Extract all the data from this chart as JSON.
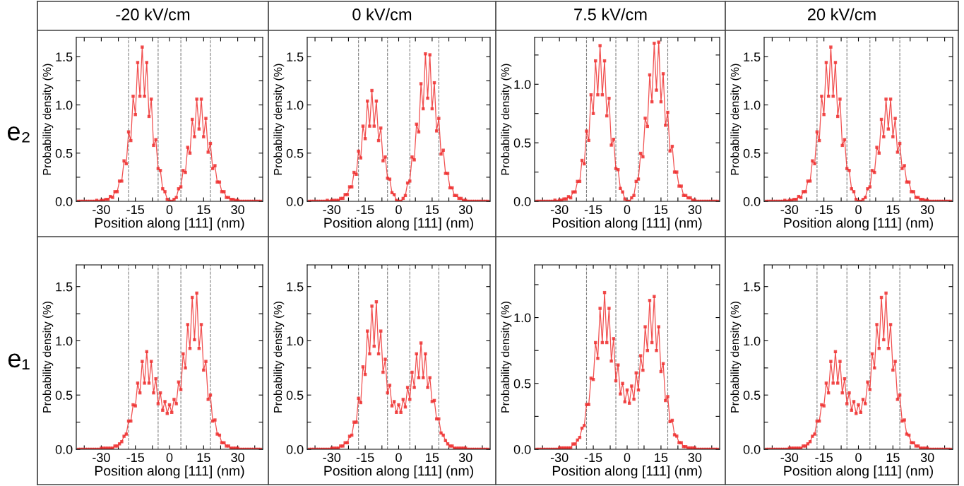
{
  "chart_data": [
    {
      "type": "line",
      "title": "-20 kV/cm",
      "annotations": [
        "e₂"
      ],
      "xlabel": "Position along [111] (nm)",
      "ylabel": "Probability density (%)",
      "marker": "square",
      "line_style": "solid",
      "xlim": [
        -41,
        41
      ],
      "ylim": [
        0,
        1.7
      ],
      "xticks": [
        {
          "value": -37.5,
          "label": null
        },
        -30,
        {
          "value": -22.5,
          "label": null
        },
        -15,
        {
          "value": -7.5,
          "label": null
        },
        0,
        {
          "value": 7.5,
          "label": null
        },
        15,
        {
          "value": 22.5,
          "label": null
        },
        30,
        {
          "value": 37.5,
          "label": null
        }
      ],
      "yticks": [
        {
          "value": 0,
          "label": "0.0"
        },
        {
          "value": 0.25,
          "label": null
        },
        {
          "value": 0.5,
          "label": "0.5"
        },
        {
          "value": 0.75,
          "label": null
        },
        {
          "value": 1,
          "label": "1.0"
        },
        {
          "value": 1.25,
          "label": null
        },
        {
          "value": 1.5,
          "label": "1.5"
        }
      ],
      "ref_lines": [
        {
          "axis": "x",
          "value": -18,
          "color": "#808080",
          "line_style": "dashed"
        },
        {
          "axis": "x",
          "value": -5,
          "color": "#808080",
          "line_style": "dashed"
        },
        {
          "axis": "x",
          "value": 5,
          "color": "#808080",
          "line_style": "dashed"
        },
        {
          "axis": "x",
          "value": 18,
          "color": "#808080",
          "line_style": "dashed"
        }
      ],
      "x": [
        -40,
        -39,
        -38,
        -37,
        -36,
        -35,
        -34,
        -33,
        -32,
        -31,
        -30,
        -29,
        -28,
        -27,
        -26,
        -25,
        -24,
        -23,
        -22,
        -21,
        -20,
        -19,
        -18,
        -17,
        -16,
        -15,
        -14,
        -13,
        -12,
        -11,
        -10,
        -9,
        -8,
        -7,
        -6,
        -5,
        -4,
        -3,
        -2,
        -1,
        0,
        1,
        2,
        3,
        4,
        5,
        6,
        7,
        8,
        9,
        10,
        11,
        12,
        13,
        14,
        15,
        16,
        17,
        18,
        19,
        20,
        21,
        22,
        23,
        24,
        25,
        26,
        27,
        28,
        29,
        30,
        31,
        32,
        33,
        34,
        35,
        36,
        37,
        38,
        39,
        40
      ],
      "series": [
        {
          "color": "#ee3030",
          "values": [
            0,
            0,
            0,
            0,
            0,
            0,
            0,
            0,
            0.01,
            0,
            0.01,
            0.01,
            0.02,
            0.02,
            0.05,
            0.04,
            0.1,
            0.1,
            0.21,
            0.21,
            0.42,
            0.39,
            0.72,
            0.63,
            1.09,
            0.9,
            1.44,
            1.09,
            1.6,
            1.09,
            1.44,
            0.88,
            1.06,
            0.58,
            0.64,
            0.34,
            0.32,
            0.13,
            0.1,
            0.02,
            0,
            0,
            0.02,
            0.04,
            0.13,
            0.15,
            0.32,
            0.3,
            0.56,
            0.5,
            0.85,
            0.67,
            1.06,
            0.75,
            1.06,
            0.67,
            0.86,
            0.51,
            0.6,
            0.34,
            0.37,
            0.2,
            0.2,
            0.1,
            0.1,
            0.04,
            0.04,
            0.02,
            0.02,
            0.01,
            0.01,
            0,
            0,
            0,
            0,
            0,
            0,
            0,
            0,
            0,
            0
          ]
        }
      ]
    },
    {
      "type": "line",
      "title": "0 kV/cm",
      "xlabel": "Position along [111] (nm)",
      "ylabel": "Probability density (%)",
      "marker": "square",
      "line_style": "solid",
      "xlim": [
        -41,
        41
      ],
      "ylim": [
        0,
        1.7
      ],
      "xticks": [
        {
          "value": -37.5,
          "label": null
        },
        -30,
        {
          "value": -22.5,
          "label": null
        },
        -15,
        {
          "value": -7.5,
          "label": null
        },
        0,
        {
          "value": 7.5,
          "label": null
        },
        15,
        {
          "value": 22.5,
          "label": null
        },
        30,
        {
          "value": 37.5,
          "label": null
        }
      ],
      "yticks": [
        {
          "value": 0,
          "label": "0.0"
        },
        {
          "value": 0.25,
          "label": null
        },
        {
          "value": 0.5,
          "label": "0.5"
        },
        {
          "value": 0.75,
          "label": null
        },
        {
          "value": 1,
          "label": "1.0"
        },
        {
          "value": 1.25,
          "label": null
        },
        {
          "value": 1.5,
          "label": "1.5"
        }
      ],
      "ref_lines": [
        {
          "axis": "x",
          "value": -18,
          "color": "#808080",
          "line_style": "dashed"
        },
        {
          "axis": "x",
          "value": -5,
          "color": "#808080",
          "line_style": "dashed"
        },
        {
          "axis": "x",
          "value": 5,
          "color": "#808080",
          "line_style": "dashed"
        },
        {
          "axis": "x",
          "value": 18,
          "color": "#808080",
          "line_style": "dashed"
        }
      ],
      "x": [
        -40,
        -39,
        -38,
        -37,
        -36,
        -35,
        -34,
        -33,
        -32,
        -31,
        -30,
        -29,
        -28,
        -27,
        -26,
        -25,
        -24,
        -23,
        -22,
        -21,
        -20,
        -19,
        -18,
        -17,
        -16,
        -15,
        -14,
        -13,
        -12,
        -11,
        -10,
        -9,
        -8,
        -7,
        -6,
        -5,
        -4,
        -3,
        -2,
        -1,
        0,
        1,
        2,
        3,
        4,
        5,
        6,
        7,
        8,
        9,
        10,
        11,
        12,
        13,
        14,
        15,
        16,
        17,
        18,
        19,
        20,
        21,
        22,
        23,
        24,
        25,
        26,
        27,
        28,
        29,
        30,
        31,
        32,
        33,
        34,
        35,
        36,
        37,
        38,
        39,
        40
      ],
      "series": [
        {
          "color": "#ee3030",
          "values": [
            0,
            0,
            0,
            0,
            0,
            0,
            0,
            0,
            0.01,
            0,
            0.01,
            0.01,
            0.01,
            0.01,
            0.03,
            0.03,
            0.07,
            0.07,
            0.15,
            0.15,
            0.3,
            0.28,
            0.52,
            0.45,
            0.78,
            0.65,
            1.04,
            0.78,
            1.15,
            0.78,
            1.04,
            0.63,
            0.76,
            0.42,
            0.46,
            0.24,
            0.23,
            0.09,
            0.07,
            0.01,
            0,
            0,
            0.03,
            0.06,
            0.19,
            0.21,
            0.46,
            0.43,
            0.8,
            0.72,
            1.22,
            0.96,
            1.53,
            1.07,
            1.52,
            0.96,
            1.23,
            0.73,
            0.86,
            0.49,
            0.53,
            0.29,
            0.29,
            0.14,
            0.14,
            0.06,
            0.06,
            0.03,
            0.03,
            0.01,
            0.01,
            0,
            0,
            0,
            0,
            0,
            0,
            0,
            0,
            0,
            0
          ]
        }
      ]
    },
    {
      "type": "line",
      "title": "7.5 kV/cm",
      "xlabel": "Position along [111] (nm)",
      "ylabel": "Probability density (%)",
      "marker": "square",
      "line_style": "solid",
      "xlim": [
        -41,
        41
      ],
      "ylim": [
        0,
        1.4
      ],
      "xticks": [
        {
          "value": -37.5,
          "label": null
        },
        -30,
        {
          "value": -22.5,
          "label": null
        },
        -15,
        {
          "value": -7.5,
          "label": null
        },
        0,
        {
          "value": 7.5,
          "label": null
        },
        15,
        {
          "value": 22.5,
          "label": null
        },
        30,
        {
          "value": 37.5,
          "label": null
        }
      ],
      "yticks": [
        {
          "value": 0,
          "label": "0.0"
        },
        {
          "value": 0.25,
          "label": null
        },
        {
          "value": 0.5,
          "label": "0.5"
        },
        {
          "value": 0.75,
          "label": null
        },
        {
          "value": 1,
          "label": "1.0"
        },
        {
          "value": 1.25,
          "label": null
        }
      ],
      "ref_lines": [
        {
          "axis": "x",
          "value": -18,
          "color": "#808080",
          "line_style": "dashed"
        },
        {
          "axis": "x",
          "value": -5,
          "color": "#808080",
          "line_style": "dashed"
        },
        {
          "axis": "x",
          "value": 5,
          "color": "#808080",
          "line_style": "dashed"
        },
        {
          "axis": "x",
          "value": 18,
          "color": "#808080",
          "line_style": "dashed"
        }
      ],
      "x": [
        -40,
        -39,
        -38,
        -37,
        -36,
        -35,
        -34,
        -33,
        -32,
        -31,
        -30,
        -29,
        -28,
        -27,
        -26,
        -25,
        -24,
        -23,
        -22,
        -21,
        -20,
        -19,
        -18,
        -17,
        -16,
        -15,
        -14,
        -13,
        -12,
        -11,
        -10,
        -9,
        -8,
        -7,
        -6,
        -5,
        -4,
        -3,
        -2,
        -1,
        0,
        1,
        2,
        3,
        4,
        5,
        6,
        7,
        8,
        9,
        10,
        11,
        12,
        13,
        14,
        15,
        16,
        17,
        18,
        19,
        20,
        21,
        22,
        23,
        24,
        25,
        26,
        27,
        28,
        29,
        30,
        31,
        32,
        33,
        34,
        35,
        36,
        37,
        38,
        39,
        40
      ],
      "series": [
        {
          "color": "#ee3030",
          "values": [
            0,
            0,
            0,
            0,
            0,
            0,
            0,
            0,
            0.01,
            0,
            0.01,
            0.01,
            0.02,
            0.02,
            0.04,
            0.03,
            0.08,
            0.08,
            0.17,
            0.17,
            0.35,
            0.32,
            0.6,
            0.52,
            0.91,
            0.75,
            1.2,
            0.91,
            1.33,
            0.91,
            1.2,
            0.73,
            0.88,
            0.48,
            0.53,
            0.28,
            0.27,
            0.11,
            0.08,
            0.02,
            0,
            0,
            0.03,
            0.05,
            0.17,
            0.19,
            0.41,
            0.38,
            0.71,
            0.64,
            1.08,
            0.85,
            1.35,
            0.95,
            1.36,
            0.85,
            1.09,
            0.65,
            0.76,
            0.43,
            0.47,
            0.25,
            0.25,
            0.13,
            0.13,
            0.05,
            0.05,
            0.03,
            0.03,
            0.01,
            0.01,
            0,
            0,
            0,
            0,
            0,
            0,
            0,
            0,
            0,
            0
          ]
        }
      ]
    },
    {
      "type": "line",
      "title": "20 kV/cm",
      "xlabel": "Position along [111] (nm)",
      "ylabel": "Probability density (%)",
      "marker": "square",
      "line_style": "solid",
      "xlim": [
        -41,
        41
      ],
      "ylim": [
        0,
        1.7
      ],
      "xticks": [
        {
          "value": -37.5,
          "label": null
        },
        -30,
        {
          "value": -22.5,
          "label": null
        },
        -15,
        {
          "value": -7.5,
          "label": null
        },
        0,
        {
          "value": 7.5,
          "label": null
        },
        15,
        {
          "value": 22.5,
          "label": null
        },
        30,
        {
          "value": 37.5,
          "label": null
        }
      ],
      "yticks": [
        {
          "value": 0,
          "label": "0.0"
        },
        {
          "value": 0.25,
          "label": null
        },
        {
          "value": 0.5,
          "label": "0.5"
        },
        {
          "value": 0.75,
          "label": null
        },
        {
          "value": 1,
          "label": "1.0"
        },
        {
          "value": 1.25,
          "label": null
        },
        {
          "value": 1.5,
          "label": "1.5"
        }
      ],
      "ref_lines": [
        {
          "axis": "x",
          "value": -18,
          "color": "#808080",
          "line_style": "dashed"
        },
        {
          "axis": "x",
          "value": -5,
          "color": "#808080",
          "line_style": "dashed"
        },
        {
          "axis": "x",
          "value": 5,
          "color": "#808080",
          "line_style": "dashed"
        },
        {
          "axis": "x",
          "value": 18,
          "color": "#808080",
          "line_style": "dashed"
        }
      ],
      "x": [
        -40,
        -39,
        -38,
        -37,
        -36,
        -35,
        -34,
        -33,
        -32,
        -31,
        -30,
        -29,
        -28,
        -27,
        -26,
        -25,
        -24,
        -23,
        -22,
        -21,
        -20,
        -19,
        -18,
        -17,
        -16,
        -15,
        -14,
        -13,
        -12,
        -11,
        -10,
        -9,
        -8,
        -7,
        -6,
        -5,
        -4,
        -3,
        -2,
        -1,
        0,
        1,
        2,
        3,
        4,
        5,
        6,
        7,
        8,
        9,
        10,
        11,
        12,
        13,
        14,
        15,
        16,
        17,
        18,
        19,
        20,
        21,
        22,
        23,
        24,
        25,
        26,
        27,
        28,
        29,
        30,
        31,
        32,
        33,
        34,
        35,
        36,
        37,
        38,
        39,
        40
      ],
      "series": [
        {
          "color": "#ee3030",
          "values": [
            0,
            0,
            0,
            0,
            0,
            0,
            0,
            0,
            0.01,
            0,
            0.01,
            0.01,
            0.02,
            0.02,
            0.05,
            0.04,
            0.1,
            0.1,
            0.21,
            0.21,
            0.42,
            0.39,
            0.72,
            0.63,
            1.09,
            0.9,
            1.44,
            1.09,
            1.6,
            1.09,
            1.44,
            0.88,
            1.06,
            0.58,
            0.64,
            0.34,
            0.32,
            0.13,
            0.1,
            0.02,
            0,
            0,
            0.02,
            0.04,
            0.13,
            0.15,
            0.32,
            0.3,
            0.56,
            0.5,
            0.85,
            0.67,
            1.06,
            0.75,
            1.06,
            0.67,
            0.86,
            0.51,
            0.6,
            0.34,
            0.37,
            0.2,
            0.2,
            0.1,
            0.1,
            0.04,
            0.04,
            0.02,
            0.02,
            0.01,
            0.01,
            0,
            0,
            0,
            0,
            0,
            0,
            0,
            0,
            0,
            0
          ]
        }
      ]
    },
    {
      "type": "line",
      "annotations": [
        "e₁"
      ],
      "xlabel": "Position along [111] (nm)",
      "ylabel": "Probability density (%)",
      "marker": "square",
      "line_style": "solid",
      "xlim": [
        -41,
        41
      ],
      "ylim": [
        0,
        1.7
      ],
      "xticks": [
        {
          "value": -37.5,
          "label": null
        },
        -30,
        {
          "value": -22.5,
          "label": null
        },
        -15,
        {
          "value": -7.5,
          "label": null
        },
        0,
        {
          "value": 7.5,
          "label": null
        },
        15,
        {
          "value": 22.5,
          "label": null
        },
        30,
        {
          "value": 37.5,
          "label": null
        }
      ],
      "yticks": [
        {
          "value": 0,
          "label": "0.0"
        },
        {
          "value": 0.25,
          "label": null
        },
        {
          "value": 0.5,
          "label": "0.5"
        },
        {
          "value": 0.75,
          "label": null
        },
        {
          "value": 1,
          "label": "1.0"
        },
        {
          "value": 1.25,
          "label": null
        },
        {
          "value": 1.5,
          "label": "1.5"
        }
      ],
      "ref_lines": [
        {
          "axis": "x",
          "value": -18,
          "color": "#808080",
          "line_style": "dashed"
        },
        {
          "axis": "x",
          "value": -5,
          "color": "#808080",
          "line_style": "dashed"
        },
        {
          "axis": "x",
          "value": 5,
          "color": "#808080",
          "line_style": "dashed"
        },
        {
          "axis": "x",
          "value": 18,
          "color": "#808080",
          "line_style": "dashed"
        }
      ],
      "x": [
        -40,
        -39,
        -38,
        -37,
        -36,
        -35,
        -34,
        -33,
        -32,
        -31,
        -30,
        -29,
        -28,
        -27,
        -26,
        -25,
        -24,
        -23,
        -22,
        -21,
        -20,
        -19,
        -18,
        -17,
        -16,
        -15,
        -14,
        -13,
        -12,
        -11,
        -10,
        -9,
        -8,
        -7,
        -6,
        -5,
        -4,
        -3,
        -2,
        -1,
        0,
        1,
        2,
        3,
        4,
        5,
        6,
        7,
        8,
        9,
        10,
        11,
        12,
        13,
        14,
        15,
        16,
        17,
        18,
        19,
        20,
        21,
        22,
        23,
        24,
        25,
        26,
        27,
        28,
        29,
        30,
        31,
        32,
        33,
        34,
        35,
        36,
        37,
        38,
        39,
        40
      ],
      "series": [
        {
          "color": "#ee3030",
          "values": [
            0,
            0,
            0,
            0,
            0,
            0,
            0,
            0,
            0,
            0,
            0.01,
            0.01,
            0.01,
            0.01,
            0.01,
            0.01,
            0.03,
            0.03,
            0.05,
            0.07,
            0.12,
            0.14,
            0.26,
            0.26,
            0.41,
            0.4,
            0.61,
            0.52,
            0.81,
            0.61,
            0.9,
            0.61,
            0.81,
            0.52,
            0.65,
            0.42,
            0.52,
            0.36,
            0.44,
            0.33,
            0.41,
            0.34,
            0.46,
            0.42,
            0.62,
            0.55,
            0.88,
            0.75,
            1.15,
            0.93,
            1.4,
            1.01,
            1.44,
            0.93,
            1.15,
            0.73,
            0.81,
            0.46,
            0.5,
            0.26,
            0.27,
            0.14,
            0.13,
            0.06,
            0.06,
            0.03,
            0.03,
            0.01,
            0.01,
            0.01,
            0.01,
            0,
            0,
            0,
            0,
            0,
            0,
            0,
            0,
            0,
            0
          ]
        }
      ]
    },
    {
      "type": "line",
      "xlabel": "Position along [111] (nm)",
      "ylabel": "Probability density (%)",
      "marker": "square",
      "line_style": "solid",
      "xlim": [
        -41,
        41
      ],
      "ylim": [
        0,
        1.7
      ],
      "xticks": [
        {
          "value": -37.5,
          "label": null
        },
        -30,
        {
          "value": -22.5,
          "label": null
        },
        -15,
        {
          "value": -7.5,
          "label": null
        },
        0,
        {
          "value": 7.5,
          "label": null
        },
        15,
        {
          "value": 22.5,
          "label": null
        },
        30,
        {
          "value": 37.5,
          "label": null
        }
      ],
      "yticks": [
        {
          "value": 0,
          "label": "0.0"
        },
        {
          "value": 0.25,
          "label": null
        },
        {
          "value": 0.5,
          "label": "0.5"
        },
        {
          "value": 0.75,
          "label": null
        },
        {
          "value": 1,
          "label": "1.0"
        },
        {
          "value": 1.25,
          "label": null
        },
        {
          "value": 1.5,
          "label": "1.5"
        }
      ],
      "ref_lines": [
        {
          "axis": "x",
          "value": -18,
          "color": "#808080",
          "line_style": "dashed"
        },
        {
          "axis": "x",
          "value": -5,
          "color": "#808080",
          "line_style": "dashed"
        },
        {
          "axis": "x",
          "value": 5,
          "color": "#808080",
          "line_style": "dashed"
        },
        {
          "axis": "x",
          "value": 18,
          "color": "#808080",
          "line_style": "dashed"
        }
      ],
      "x": [
        -40,
        -39,
        -38,
        -37,
        -36,
        -35,
        -34,
        -33,
        -32,
        -31,
        -30,
        -29,
        -28,
        -27,
        -26,
        -25,
        -24,
        -23,
        -22,
        -21,
        -20,
        -19,
        -18,
        -17,
        -16,
        -15,
        -14,
        -13,
        -12,
        -11,
        -10,
        -9,
        -8,
        -7,
        -6,
        -5,
        -4,
        -3,
        -2,
        -1,
        0,
        1,
        2,
        3,
        4,
        5,
        6,
        7,
        8,
        9,
        10,
        11,
        12,
        13,
        14,
        15,
        16,
        17,
        18,
        19,
        20,
        21,
        22,
        23,
        24,
        25,
        26,
        27,
        28,
        29,
        30,
        31,
        32,
        33,
        34,
        35,
        36,
        37,
        38,
        39,
        40
      ],
      "series": [
        {
          "color": "#ee3030",
          "values": [
            0,
            0,
            0,
            0,
            0,
            0,
            0,
            0,
            0,
            0,
            0.01,
            0.01,
            0.01,
            0.01,
            0.03,
            0.03,
            0.06,
            0.06,
            0.12,
            0.13,
            0.25,
            0.25,
            0.47,
            0.43,
            0.76,
            0.69,
            1.09,
            0.88,
            1.32,
            0.95,
            1.36,
            0.88,
            1.09,
            0.71,
            0.83,
            0.52,
            0.59,
            0.4,
            0.44,
            0.34,
            0.41,
            0.34,
            0.46,
            0.39,
            0.57,
            0.46,
            0.71,
            0.57,
            0.88,
            0.66,
            0.98,
            0.66,
            0.88,
            0.57,
            0.66,
            0.44,
            0.45,
            0.28,
            0.28,
            0.15,
            0.13,
            0.08,
            0.05,
            0.03,
            0.03,
            0.01,
            0.01,
            0.01,
            0.01,
            0.01,
            0.01,
            0,
            0,
            0,
            0,
            0,
            0,
            0,
            0,
            0,
            0
          ]
        }
      ]
    },
    {
      "type": "line",
      "xlabel": "Position along [111] (nm)",
      "ylabel": "Probability density (%)",
      "marker": "square",
      "line_style": "solid",
      "xlim": [
        -41,
        41
      ],
      "ylim": [
        0,
        1.4
      ],
      "xticks": [
        {
          "value": -37.5,
          "label": null
        },
        -30,
        {
          "value": -22.5,
          "label": null
        },
        -15,
        {
          "value": -7.5,
          "label": null
        },
        0,
        {
          "value": 7.5,
          "label": null
        },
        15,
        {
          "value": 22.5,
          "label": null
        },
        30,
        {
          "value": 37.5,
          "label": null
        }
      ],
      "yticks": [
        {
          "value": 0,
          "label": "0.0"
        },
        {
          "value": 0.25,
          "label": null
        },
        {
          "value": 0.5,
          "label": "0.5"
        },
        {
          "value": 0.75,
          "label": null
        },
        {
          "value": 1,
          "label": "1.0"
        },
        {
          "value": 1.25,
          "label": null
        }
      ],
      "ref_lines": [
        {
          "axis": "x",
          "value": -18,
          "color": "#808080",
          "line_style": "dashed"
        },
        {
          "axis": "x",
          "value": -5,
          "color": "#808080",
          "line_style": "dashed"
        },
        {
          "axis": "x",
          "value": 5,
          "color": "#808080",
          "line_style": "dashed"
        },
        {
          "axis": "x",
          "value": 18,
          "color": "#808080",
          "line_style": "dashed"
        }
      ],
      "x": [
        -40,
        -39,
        -38,
        -37,
        -36,
        -35,
        -34,
        -33,
        -32,
        -31,
        -30,
        -29,
        -28,
        -27,
        -26,
        -25,
        -24,
        -23,
        -22,
        -21,
        -20,
        -19,
        -18,
        -17,
        -16,
        -15,
        -14,
        -13,
        -12,
        -11,
        -10,
        -9,
        -8,
        -7,
        -6,
        -5,
        -4,
        -3,
        -2,
        -1,
        0,
        1,
        2,
        3,
        4,
        5,
        6,
        7,
        8,
        9,
        10,
        11,
        12,
        13,
        14,
        15,
        16,
        17,
        18,
        19,
        20,
        21,
        22,
        23,
        24,
        25,
        26,
        27,
        28,
        29,
        30,
        31,
        32,
        33,
        34,
        35,
        36,
        37,
        38,
        39,
        40
      ],
      "series": [
        {
          "color": "#ee3030",
          "values": [
            0,
            0,
            0,
            0,
            0,
            0,
            0,
            0,
            0,
            0,
            0.01,
            0.01,
            0.01,
            0.01,
            0.01,
            0.01,
            0.04,
            0.04,
            0.07,
            0.09,
            0.16,
            0.18,
            0.34,
            0.34,
            0.54,
            0.53,
            0.81,
            0.69,
            1.07,
            0.81,
            1.19,
            0.81,
            1.07,
            0.67,
            0.84,
            0.52,
            0.64,
            0.42,
            0.5,
            0.36,
            0.45,
            0.35,
            0.48,
            0.38,
            0.58,
            0.45,
            0.71,
            0.6,
            0.93,
            0.75,
            1.13,
            0.81,
            1.16,
            0.75,
            0.93,
            0.59,
            0.65,
            0.37,
            0.4,
            0.21,
            0.22,
            0.11,
            0.1,
            0.05,
            0.05,
            0.02,
            0.02,
            0.01,
            0.01,
            0.01,
            0.01,
            0,
            0,
            0,
            0,
            0,
            0,
            0,
            0,
            0,
            0
          ]
        }
      ]
    },
    {
      "type": "line",
      "xlabel": "Position along [111] (nm)",
      "ylabel": "Probability density (%)",
      "marker": "square",
      "line_style": "solid",
      "xlim": [
        -41,
        41
      ],
      "ylim": [
        0,
        1.7
      ],
      "xticks": [
        {
          "value": -37.5,
          "label": null
        },
        -30,
        {
          "value": -22.5,
          "label": null
        },
        -15,
        {
          "value": -7.5,
          "label": null
        },
        0,
        {
          "value": 7.5,
          "label": null
        },
        15,
        {
          "value": 22.5,
          "label": null
        },
        30,
        {
          "value": 37.5,
          "label": null
        }
      ],
      "yticks": [
        {
          "value": 0,
          "label": "0.0"
        },
        {
          "value": 0.25,
          "label": null
        },
        {
          "value": 0.5,
          "label": "0.5"
        },
        {
          "value": 0.75,
          "label": null
        },
        {
          "value": 1,
          "label": "1.0"
        },
        {
          "value": 1.25,
          "label": null
        },
        {
          "value": 1.5,
          "label": "1.5"
        }
      ],
      "ref_lines": [
        {
          "axis": "x",
          "value": -18,
          "color": "#808080",
          "line_style": "dashed"
        },
        {
          "axis": "x",
          "value": -5,
          "color": "#808080",
          "line_style": "dashed"
        },
        {
          "axis": "x",
          "value": 5,
          "color": "#808080",
          "line_style": "dashed"
        },
        {
          "axis": "x",
          "value": 18,
          "color": "#808080",
          "line_style": "dashed"
        }
      ],
      "x": [
        -40,
        -39,
        -38,
        -37,
        -36,
        -35,
        -34,
        -33,
        -32,
        -31,
        -30,
        -29,
        -28,
        -27,
        -26,
        -25,
        -24,
        -23,
        -22,
        -21,
        -20,
        -19,
        -18,
        -17,
        -16,
        -15,
        -14,
        -13,
        -12,
        -11,
        -10,
        -9,
        -8,
        -7,
        -6,
        -5,
        -4,
        -3,
        -2,
        -1,
        0,
        1,
        2,
        3,
        4,
        5,
        6,
        7,
        8,
        9,
        10,
        11,
        12,
        13,
        14,
        15,
        16,
        17,
        18,
        19,
        20,
        21,
        22,
        23,
        24,
        25,
        26,
        27,
        28,
        29,
        30,
        31,
        32,
        33,
        34,
        35,
        36,
        37,
        38,
        39,
        40
      ],
      "series": [
        {
          "color": "#ee3030",
          "values": [
            0,
            0,
            0,
            0,
            0,
            0,
            0,
            0,
            0,
            0,
            0.01,
            0.01,
            0.01,
            0.01,
            0.01,
            0.01,
            0.03,
            0.03,
            0.05,
            0.07,
            0.12,
            0.14,
            0.26,
            0.26,
            0.41,
            0.4,
            0.61,
            0.52,
            0.81,
            0.61,
            0.9,
            0.61,
            0.81,
            0.52,
            0.65,
            0.42,
            0.52,
            0.36,
            0.44,
            0.33,
            0.41,
            0.34,
            0.46,
            0.42,
            0.62,
            0.55,
            0.88,
            0.75,
            1.15,
            0.93,
            1.4,
            1.01,
            1.44,
            0.93,
            1.15,
            0.73,
            0.81,
            0.46,
            0.5,
            0.26,
            0.27,
            0.14,
            0.13,
            0.06,
            0.06,
            0.03,
            0.03,
            0.01,
            0.01,
            0.01,
            0.01,
            0,
            0,
            0,
            0,
            0,
            0,
            0,
            0,
            0,
            0
          ]
        }
      ]
    }
  ]
}
